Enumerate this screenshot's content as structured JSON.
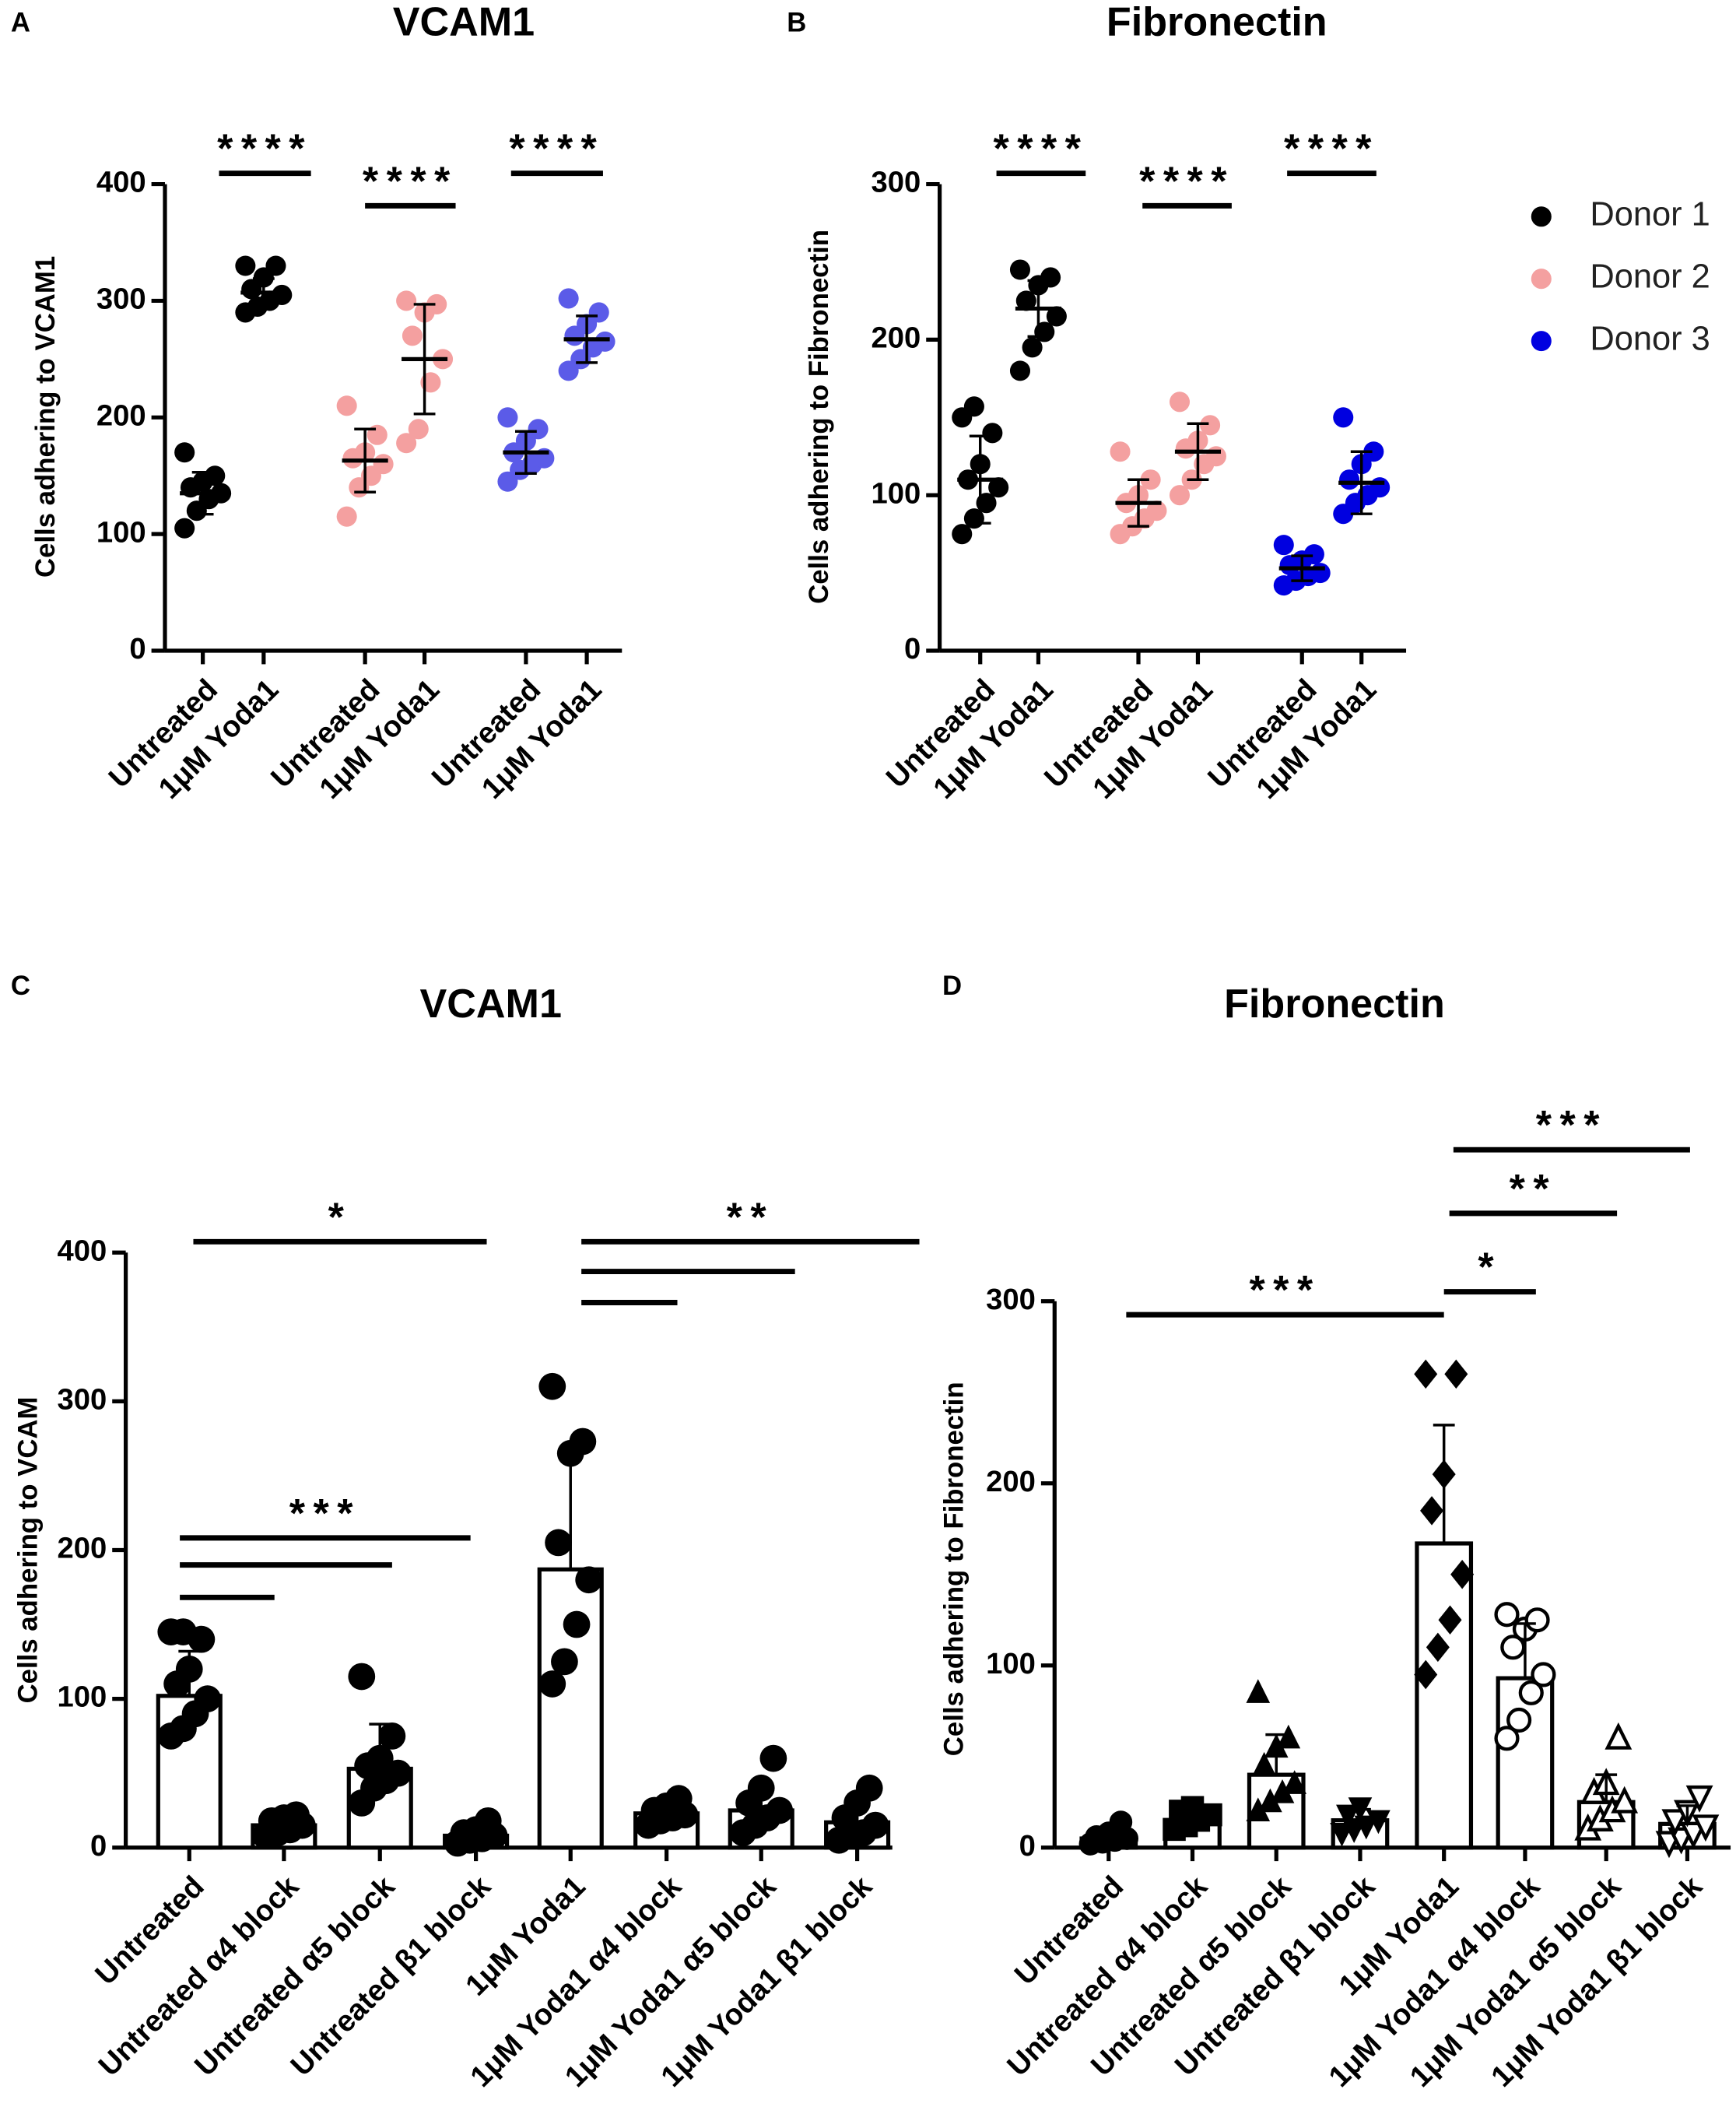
{
  "chart_data": [
    {
      "type": "dot",
      "panel": "A",
      "title": "VCAM1",
      "ylabel": "Cells adhering to VCAM1",
      "categories": [
        "Untreated",
        "1μM Yoda1",
        "Untreated",
        "1μM Yoda1",
        "Untreated",
        "1μM Yoda1"
      ],
      "colors": [
        "#000000",
        "#000000",
        "#f4a0a0",
        "#f4a0a0",
        "#5b5be8",
        "#5b5be8"
      ],
      "ylim": [
        0,
        400
      ],
      "yticks": [
        0,
        100,
        200,
        300,
        400
      ],
      "groups": [
        {
          "mean": 135,
          "sd": 18,
          "points": [
            105,
            120,
            130,
            135,
            140,
            145,
            150,
            170
          ]
        },
        {
          "mean": 307,
          "sd": 12,
          "points": [
            290,
            295,
            300,
            305,
            310,
            320,
            330,
            330
          ]
        },
        {
          "mean": 163,
          "sd": 27,
          "points": [
            115,
            140,
            150,
            160,
            165,
            170,
            185,
            210
          ]
        },
        {
          "mean": 250,
          "sd": 47,
          "points": [
            178,
            190,
            230,
            250,
            270,
            290,
            297,
            300
          ]
        },
        {
          "mean": 170,
          "sd": 18,
          "points": [
            145,
            155,
            160,
            165,
            170,
            180,
            190,
            200
          ]
        },
        {
          "mean": 267,
          "sd": 20,
          "points": [
            240,
            250,
            260,
            265,
            270,
            280,
            290,
            302
          ]
        }
      ],
      "brackets": [
        {
          "from": 0,
          "to": 1,
          "label": "****"
        },
        {
          "from": 2,
          "to": 3,
          "label": "****"
        },
        {
          "from": 4,
          "to": 5,
          "label": "****"
        }
      ]
    },
    {
      "type": "dot",
      "panel": "B",
      "title": "Fibronectin",
      "ylabel": "Cells adhering to Fibronectin",
      "categories": [
        "Untreated",
        "1μM Yoda1",
        "Untreated",
        "1μM Yoda1",
        "Untreated",
        "1μM Yoda1"
      ],
      "colors": [
        "#000000",
        "#000000",
        "#f4a0a0",
        "#f4a0a0",
        "#0000e0",
        "#0000e0"
      ],
      "ylim": [
        0,
        300
      ],
      "yticks": [
        0,
        100,
        200,
        300
      ],
      "groups": [
        {
          "mean": 110,
          "sd": 28,
          "points": [
            75,
            85,
            95,
            105,
            110,
            120,
            140,
            150,
            157
          ]
        },
        {
          "mean": 220,
          "sd": 18,
          "points": [
            180,
            195,
            205,
            215,
            225,
            235,
            240,
            245
          ]
        },
        {
          "mean": 95,
          "sd": 15,
          "points": [
            75,
            80,
            85,
            90,
            95,
            100,
            110,
            128
          ]
        },
        {
          "mean": 128,
          "sd": 18,
          "points": [
            100,
            110,
            120,
            125,
            130,
            135,
            145,
            160
          ]
        },
        {
          "mean": 53,
          "sd": 8,
          "points": [
            42,
            45,
            48,
            50,
            55,
            58,
            62,
            68
          ]
        },
        {
          "mean": 108,
          "sd": 20,
          "points": [
            88,
            95,
            100,
            105,
            110,
            120,
            128,
            150
          ]
        }
      ],
      "brackets": [
        {
          "from": 0,
          "to": 1,
          "label": "****"
        },
        {
          "from": 2,
          "to": 3,
          "label": "****"
        },
        {
          "from": 4,
          "to": 5,
          "label": "****"
        }
      ],
      "legend": [
        {
          "name": "Donor 1",
          "color": "#000000"
        },
        {
          "name": "Donor 2",
          "color": "#f4a0a0"
        },
        {
          "name": "Donor 3",
          "color": "#0000e0"
        }
      ]
    },
    {
      "type": "bar",
      "panel": "C",
      "title": "VCAM1",
      "ylabel": "Cells adhering to VCAM",
      "categories": [
        "Untreated",
        "Untreated α4 block",
        "Untreated α5 block",
        "Untreated β1 block",
        "1μM Yoda1",
        "1μM Yoda1 α4 block",
        "1μM Yoda1 α5 block",
        "1μM Yoda1 β1 block"
      ],
      "color": "#000000",
      "ylim": [
        0,
        400
      ],
      "yticks": [
        0,
        100,
        200,
        300,
        400
      ],
      "groups": [
        {
          "mean": 102,
          "sd": 30,
          "points": [
            75,
            80,
            90,
            100,
            110,
            120,
            140,
            145,
            145
          ]
        },
        {
          "mean": 15,
          "sd": 7,
          "points": [
            8,
            10,
            12,
            15,
            18,
            20,
            22
          ]
        },
        {
          "mean": 53,
          "sd": 30,
          "points": [
            30,
            40,
            45,
            50,
            55,
            60,
            75,
            115
          ]
        },
        {
          "mean": 8,
          "sd": 5,
          "points": [
            3,
            5,
            6,
            8,
            10,
            12,
            18
          ]
        },
        {
          "mean": 187,
          "sd": 78,
          "points": [
            110,
            125,
            150,
            180,
            205,
            265,
            273,
            310
          ]
        },
        {
          "mean": 23,
          "sd": 7,
          "points": [
            15,
            18,
            20,
            22,
            25,
            28,
            33
          ]
        },
        {
          "mean": 25,
          "sd": 15,
          "points": [
            10,
            15,
            20,
            25,
            30,
            40,
            60
          ]
        },
        {
          "mean": 17,
          "sd": 12,
          "points": [
            5,
            8,
            10,
            15,
            20,
            30,
            40
          ]
        }
      ],
      "brackets": [
        {
          "from": 0,
          "to": 3,
          "label": "*"
        },
        {
          "from": 0,
          "to": 3,
          "label": "***"
        },
        {
          "from": 0,
          "to": 2
        },
        {
          "from": 0,
          "to": 1
        },
        {
          "from": 4,
          "to": 7,
          "label": "**"
        },
        {
          "from": 4,
          "to": 6
        },
        {
          "from": 4,
          "to": 5
        }
      ]
    },
    {
      "type": "bar",
      "panel": "D",
      "title": "Fibronectin",
      "ylabel": "Cells adhering to Fibronectin",
      "categories": [
        "Untreated",
        "Untreated α4 block",
        "Untreated α5 block",
        "Untreated β1 block",
        "1μM Yoda1",
        "1μM Yoda1 α4 block",
        "1μM Yoda1 α5 block",
        "1μM Yoda1 β1 block"
      ],
      "color": "#000000",
      "ylim": [
        0,
        300
      ],
      "yticks": [
        0,
        100,
        200,
        300
      ],
      "markers": [
        "circle",
        "square",
        "triangle",
        "triangle-down",
        "diamond",
        "circle-open",
        "triangle-open",
        "triangle-down-open"
      ],
      "groups": [
        {
          "mean": 5,
          "sd": 4,
          "points": [
            2,
            3,
            4,
            5,
            6,
            8,
            14
          ]
        },
        {
          "mean": 15,
          "sd": 5,
          "points": [
            10,
            12,
            15,
            18,
            20,
            22
          ]
        },
        {
          "mean": 40,
          "sd": 22,
          "points": [
            20,
            25,
            30,
            35,
            45,
            55,
            60,
            85
          ]
        },
        {
          "mean": 15,
          "sd": 6,
          "points": [
            8,
            10,
            12,
            15,
            18,
            22
          ]
        },
        {
          "mean": 167,
          "sd": 65,
          "points": [
            95,
            110,
            125,
            150,
            185,
            205,
            260,
            260
          ]
        },
        {
          "mean": 93,
          "sd": 30,
          "points": [
            60,
            70,
            85,
            95,
            110,
            120,
            125,
            128
          ]
        },
        {
          "mean": 25,
          "sd": 15,
          "points": [
            10,
            15,
            20,
            25,
            30,
            35,
            60
          ]
        },
        {
          "mean": 13,
          "sd": 10,
          "points": [
            3,
            5,
            8,
            12,
            15,
            20,
            28
          ]
        }
      ],
      "brackets": [
        {
          "from": 0,
          "to": 4,
          "label": "***"
        },
        {
          "from": 4,
          "to": 5,
          "label": "*"
        },
        {
          "from": 4,
          "to": 6,
          "label": "**"
        },
        {
          "from": 4,
          "to": 7,
          "label": "***"
        }
      ]
    }
  ]
}
